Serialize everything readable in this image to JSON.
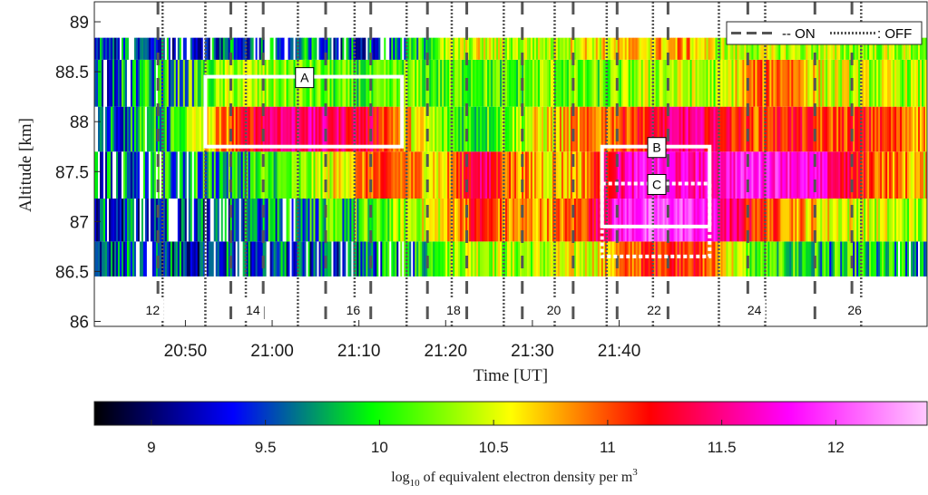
{
  "chart_data": {
    "type": "heatmap",
    "xlabel": "Time [UT]",
    "ylabel": "Altitude [km]",
    "x_range_minutes_after_2040": [
      4,
      100
    ],
    "xlim_ut": [
      "20:44",
      "21:44"
    ],
    "ylim": [
      85.95,
      89.2
    ],
    "x_ticks": [
      "20:50",
      "21:00",
      "21:10",
      "21:20",
      "21:30",
      "21:40"
    ],
    "y_ticks": [
      "86",
      "86.5",
      "87",
      "87.5",
      "88",
      "88.5",
      "89"
    ],
    "altitude_bins_km": [
      86.5,
      87.0,
      87.5,
      88.0,
      88.5,
      88.75
    ],
    "colorbar": {
      "label_prefix": "log",
      "label_sub": "10",
      "label_main": " of equivalent electron density per m",
      "label_sup": "3",
      "range": [
        8.75,
        12.4
      ],
      "ticks": [
        "9",
        "9.5",
        "10",
        "10.5",
        "11",
        "11.5",
        "12"
      ],
      "colormap": [
        "#000000",
        "#0000ff",
        "#00ff00",
        "#ffff00",
        "#ff0000",
        "#ff00ff",
        "#ffc8ff"
      ]
    },
    "legend": {
      "on_label": "-- ON",
      "off_label": ": OFF",
      "placement": "top-right"
    },
    "heating_cycles": [
      {
        "label": "12",
        "time_min": 4.5
      },
      {
        "label": "14",
        "time_min": 13.0
      },
      {
        "label": "16",
        "time_min": 21.5
      },
      {
        "label": "18",
        "time_min": 30.0
      },
      {
        "label": "20",
        "time_min": 38.5
      },
      {
        "label": "22",
        "time_min": 47.0
      },
      {
        "label": "24",
        "time_min": 55.5
      },
      {
        "label": "26",
        "time_min": 64.0
      }
    ],
    "on_times_min": [
      5.5,
      11.8,
      14.6,
      20.0,
      23.9,
      28.8,
      32.2,
      37.0,
      41.4,
      45.2,
      49.6,
      56.5,
      62.3,
      65.5
    ],
    "off_times_min": [
      5.9,
      9.6,
      13.1,
      17.6,
      22.5,
      27.0,
      30.9,
      35.4,
      39.8,
      44.3,
      48.3,
      54.0,
      58.0,
      66.3
    ],
    "regions": [
      {
        "label": "A",
        "t": [
          9.6,
          26.6
        ],
        "alt": [
          87.75,
          88.45
        ],
        "style": "solid"
      },
      {
        "label": "B",
        "t": [
          43.9,
          53.2
        ],
        "alt": [
          86.95,
          87.75
        ],
        "style": "solid"
      },
      {
        "label": "C",
        "t": [
          43.9,
          53.2
        ],
        "alt": [
          86.65,
          87.38
        ],
        "style": "dotted"
      }
    ],
    "intensity_profile": {
      "times_min": [
        0,
        6,
        9,
        12,
        15,
        18,
        21,
        24,
        27,
        30,
        33,
        36,
        39,
        42,
        45,
        48,
        51,
        54,
        57,
        60,
        63,
        66,
        69,
        72
      ],
      "alt_86_5": [
        9.4,
        9.5,
        9.4,
        9.5,
        9.5,
        9.5,
        9.5,
        9.6,
        9.7,
        10.3,
        10.5,
        10.3,
        10.4,
        10.5,
        10.8,
        11.1,
        11.2,
        10.8,
        10.1,
        10.0,
        9.9,
        9.8,
        9.8,
        9.7
      ],
      "alt_87_0": [
        9.4,
        9.5,
        9.5,
        9.6,
        9.7,
        9.8,
        9.9,
        10.0,
        10.4,
        10.6,
        11.2,
        10.8,
        10.8,
        11.0,
        11.8,
        12.0,
        12.0,
        11.6,
        11.1,
        10.9,
        10.6,
        10.5,
        10.4,
        10.3
      ],
      "alt_87_5": [
        9.6,
        9.7,
        9.8,
        9.8,
        10.0,
        10.2,
        10.6,
        11.0,
        10.9,
        10.6,
        11.5,
        10.9,
        10.7,
        10.8,
        11.5,
        11.8,
        11.6,
        11.7,
        11.9,
        11.8,
        11.6,
        11.1,
        10.9,
        10.6
      ],
      "alt_88_0": [
        9.6,
        9.8,
        10.5,
        11.0,
        11.5,
        11.5,
        11.4,
        11.3,
        10.7,
        10.2,
        10.0,
        10.3,
        10.6,
        10.8,
        11.0,
        11.2,
        11.5,
        11.3,
        11.0,
        11.2,
        11.0,
        11.1,
        11.0,
        10.8
      ],
      "alt_88_5": [
        9.6,
        9.8,
        10.0,
        10.4,
        10.3,
        10.2,
        10.1,
        10.0,
        10.2,
        10.1,
        10.2,
        10.0,
        10.3,
        10.1,
        10.2,
        10.4,
        10.4,
        10.3,
        10.9,
        11.0,
        10.5,
        10.4,
        10.4,
        10.3
      ],
      "alt_88_75": [
        9.5,
        9.5,
        9.5,
        9.5,
        9.5,
        9.6,
        9.5,
        9.6,
        9.7,
        10.3,
        10.5,
        10.4,
        10.4,
        10.6,
        10.6,
        10.7,
        10.8,
        10.4,
        10.4,
        10.4,
        10.4,
        10.3,
        10.4,
        10.3
      ]
    }
  }
}
